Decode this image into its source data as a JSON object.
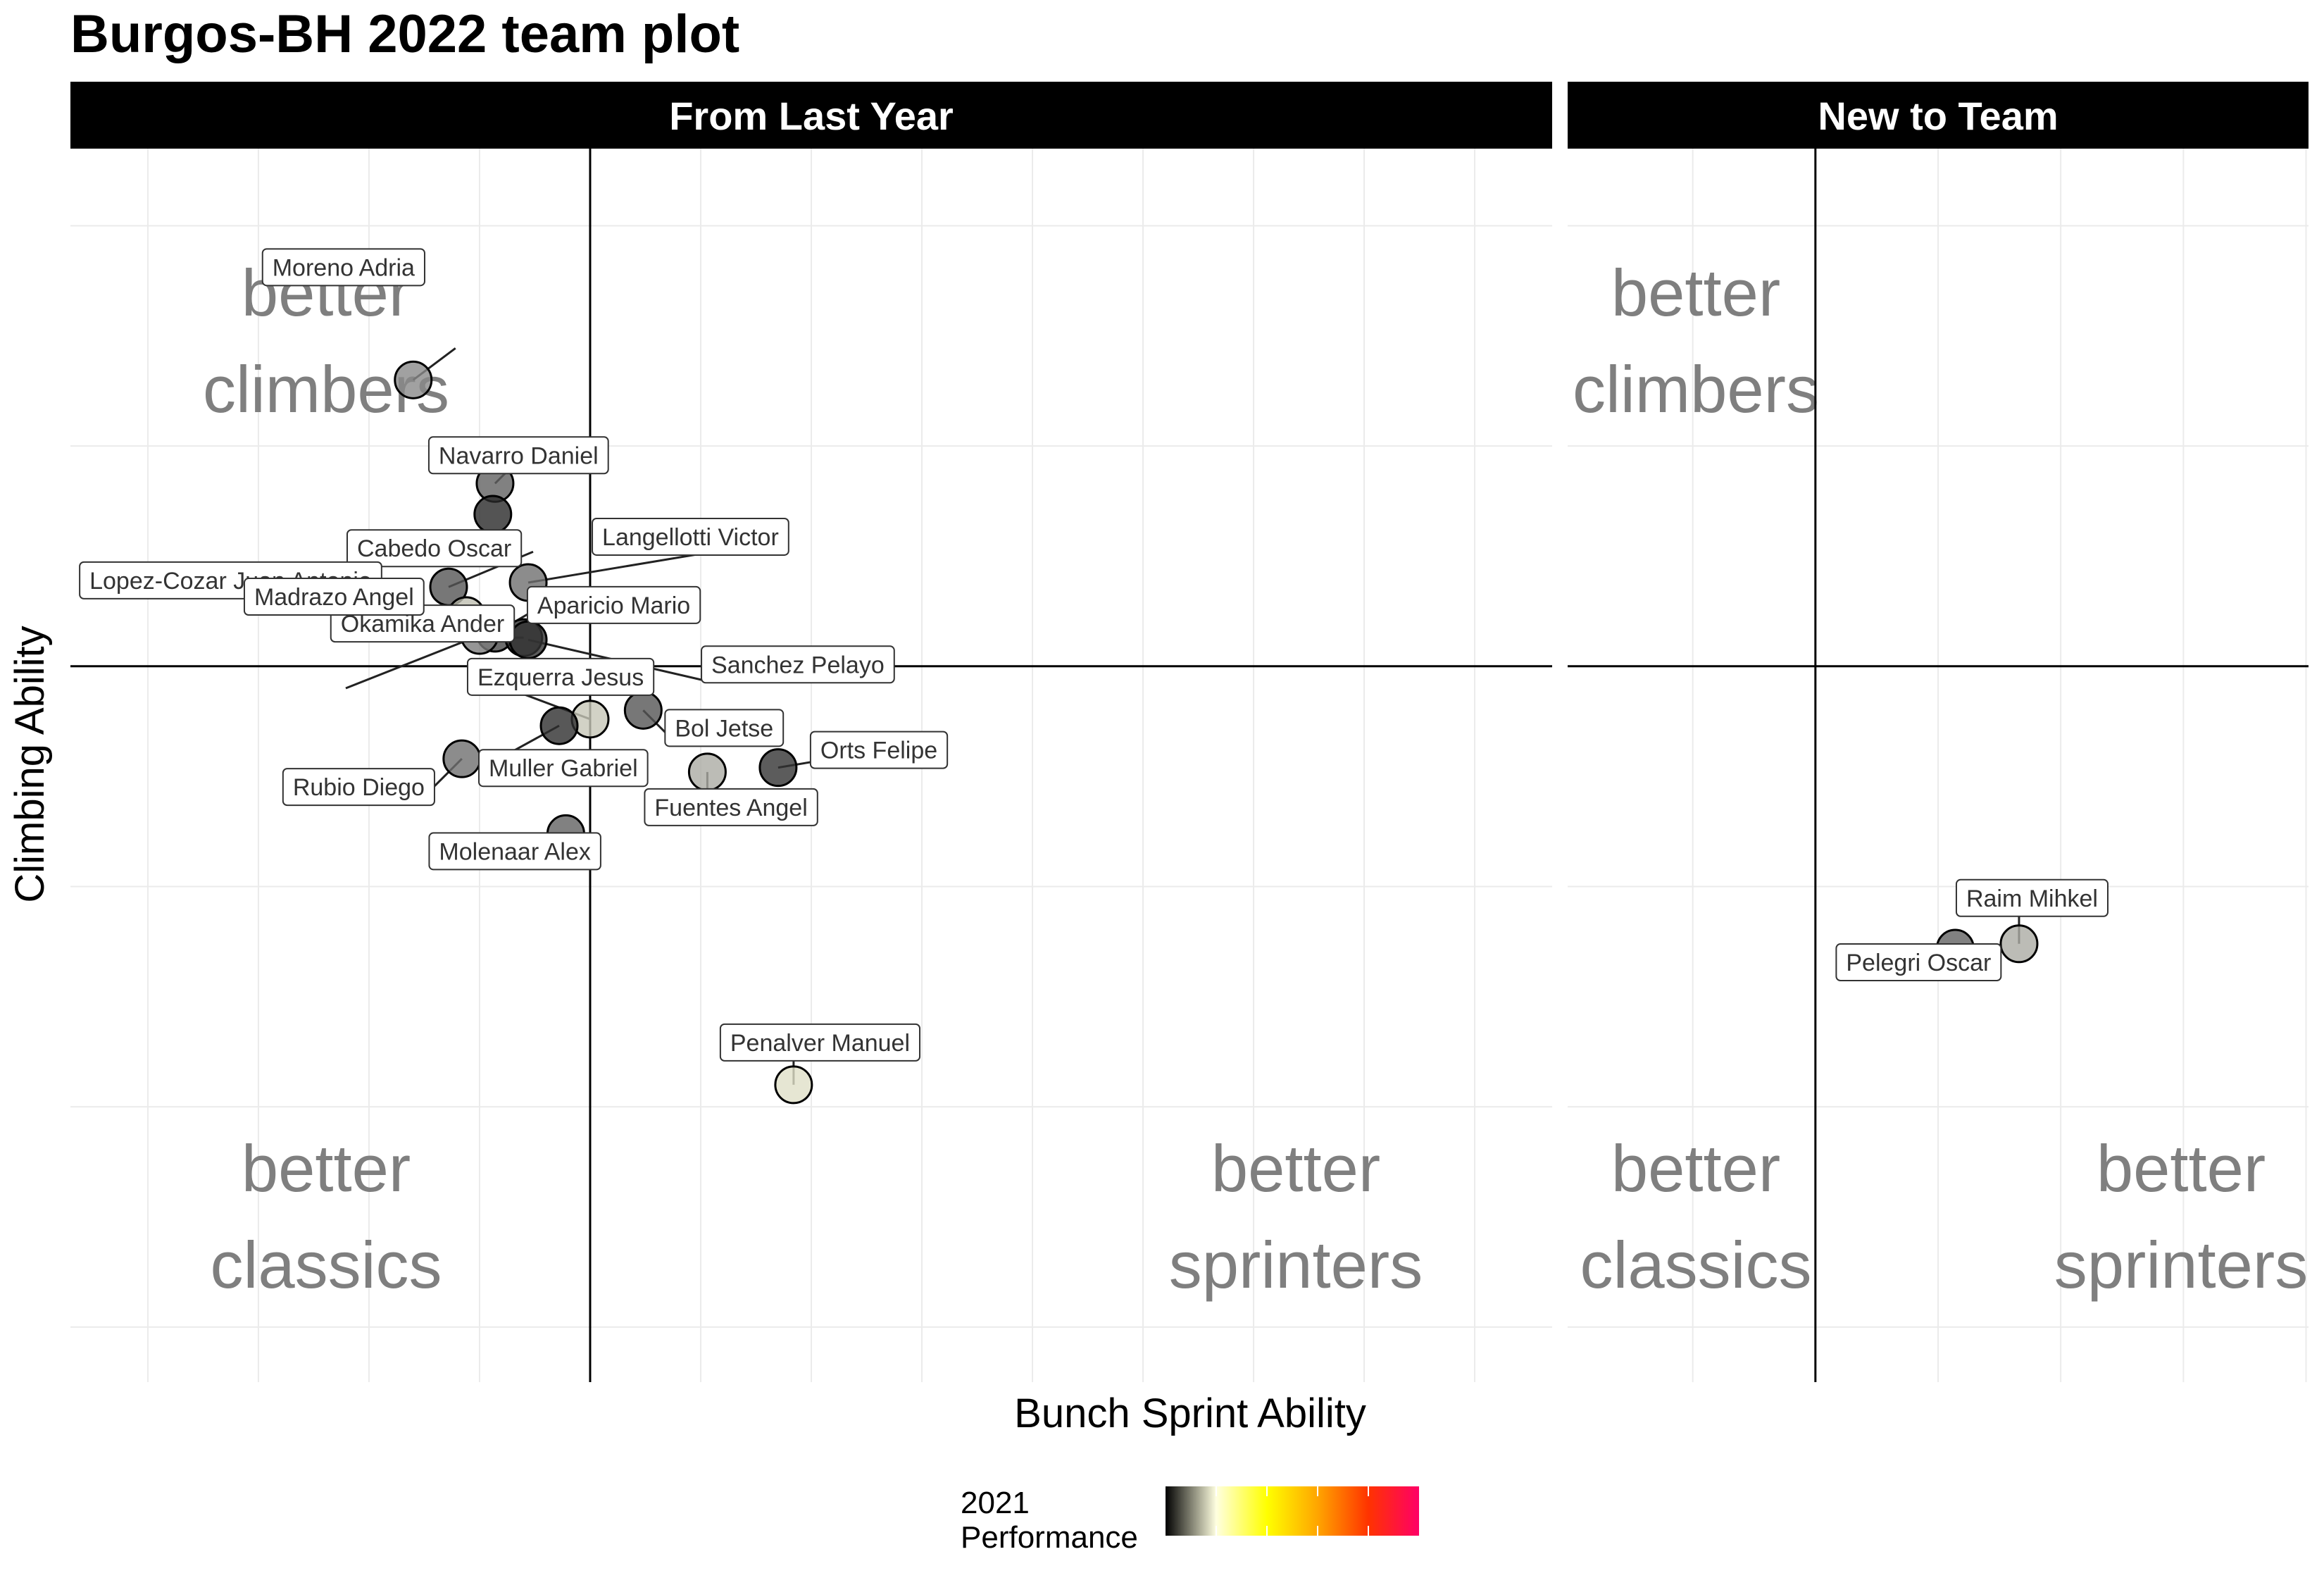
{
  "chart_data": {
    "type": "scatter",
    "title": "Burgos-BH 2022 team plot",
    "xlabel": "Bunch Sprint Ability",
    "ylabel": "Climbing Ability",
    "legend": {
      "title_lines": [
        "2021",
        "Performance"
      ],
      "position": "bottom",
      "gradient": [
        "#000000",
        "#ffffe0",
        "#ffff00",
        "#ffa500",
        "#ff0000",
        "#ff0066"
      ]
    },
    "quadrant_labels": {
      "climbers": [
        "better",
        "climbers"
      ],
      "classics": [
        "better",
        "classics"
      ],
      "sprinters": [
        "better",
        "sprinters"
      ]
    },
    "panels": [
      {
        "name": "From Last Year",
        "xlim": [
          -2.35,
          4.35
        ],
        "ylim": [
          -3.25,
          2.35
        ],
        "points": [
          {
            "label": "Moreno Adria",
            "x": -0.8,
            "y": 1.3,
            "perf": 0.45
          },
          {
            "label": "Navarro Daniel",
            "x": -0.43,
            "y": 0.83,
            "perf": 0.3
          },
          {
            "label": "",
            "x": -0.44,
            "y": 0.69,
            "perf": 0.08
          },
          {
            "label": "Cabedo Oscar",
            "x": -0.64,
            "y": 0.36,
            "perf": 0.25
          },
          {
            "label": "Langellotti Victor",
            "x": -0.28,
            "y": 0.38,
            "perf": 0.35
          },
          {
            "label": "Lopez-Cozar Juan Antonio",
            "x": -0.56,
            "y": 0.23,
            "perf": 0.6
          },
          {
            "label": "Aparicio Mario",
            "x": -0.43,
            "y": 0.15,
            "perf": 0.2
          },
          {
            "label": "Okamika Ander",
            "x": -0.3,
            "y": 0.13,
            "perf": 0.1
          },
          {
            "label": "Madrazo Angel",
            "x": -0.5,
            "y": 0.14,
            "perf": 0.4
          },
          {
            "label": "Sanchez Pelayo",
            "x": -0.28,
            "y": 0.12,
            "perf": 0.12
          },
          {
            "label": "Ezquerra Jesus",
            "x": 0.0,
            "y": -0.24,
            "perf": 0.62
          },
          {
            "label": "Muller Gabriel",
            "x": -0.14,
            "y": -0.27,
            "perf": 0.1
          },
          {
            "label": "Bol Jetse",
            "x": 0.24,
            "y": -0.2,
            "perf": 0.25
          },
          {
            "label": "Orts Felipe",
            "x": 0.85,
            "y": -0.46,
            "perf": 0.12
          },
          {
            "label": "Fuentes Angel",
            "x": 0.53,
            "y": -0.48,
            "perf": 0.55
          },
          {
            "label": "Rubio Diego",
            "x": -0.58,
            "y": -0.42,
            "perf": 0.35
          },
          {
            "label": "Molenaar Alex",
            "x": -0.11,
            "y": -0.76,
            "perf": 0.3
          },
          {
            "label": "Penalver Manuel",
            "x": 0.92,
            "y": -1.9,
            "perf": 0.68
          }
        ]
      },
      {
        "name": "New to Team",
        "xlim": [
          -1.01,
          2.01
        ],
        "ylim": [
          -3.25,
          2.35
        ],
        "points": [
          {
            "label": "Raim Mihkel",
            "x": 0.83,
            "y": -1.26,
            "perf": 0.55
          },
          {
            "label": "Pelegri Oscar",
            "x": 0.57,
            "y": -1.28,
            "perf": 0.3
          }
        ]
      }
    ]
  }
}
